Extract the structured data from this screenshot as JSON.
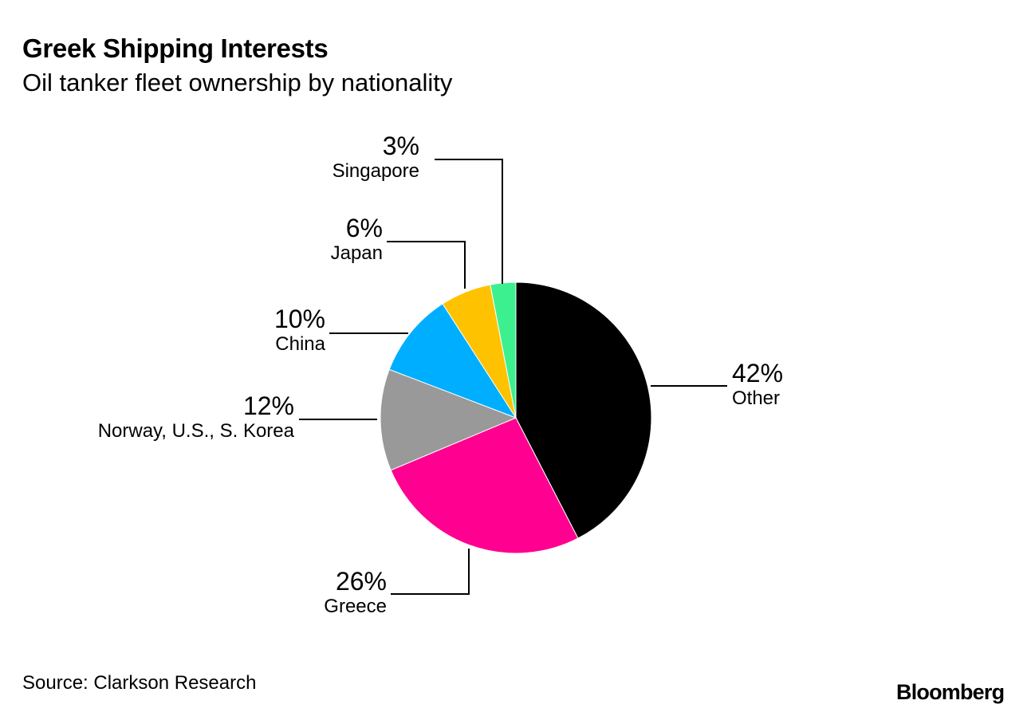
{
  "title": "Greek Shipping Interests",
  "subtitle": "Oil tanker fleet ownership by nationality",
  "source": "Source: Clarkson Research",
  "logo": "Bloomberg",
  "chart_data": {
    "type": "pie",
    "title": "Greek Shipping Interests",
    "subtitle": "Oil tanker fleet ownership by nationality",
    "start": "top",
    "direction": "clockwise",
    "slices": [
      {
        "label": "Other",
        "value": 42,
        "pct_label": "42%",
        "color": "#000000"
      },
      {
        "label": "Greece",
        "value": 26,
        "pct_label": "26%",
        "color": "#ff0090"
      },
      {
        "label": "Norway, U.S., S. Korea",
        "value": 12,
        "pct_label": "12%",
        "color": "#999999"
      },
      {
        "label": "China",
        "value": 10,
        "pct_label": "10%",
        "color": "#00aeff"
      },
      {
        "label": "Japan",
        "value": 6,
        "pct_label": "6%",
        "color": "#ffc200"
      },
      {
        "label": "Singapore",
        "value": 3,
        "pct_label": "3%",
        "color": "#3cf08f"
      }
    ]
  }
}
